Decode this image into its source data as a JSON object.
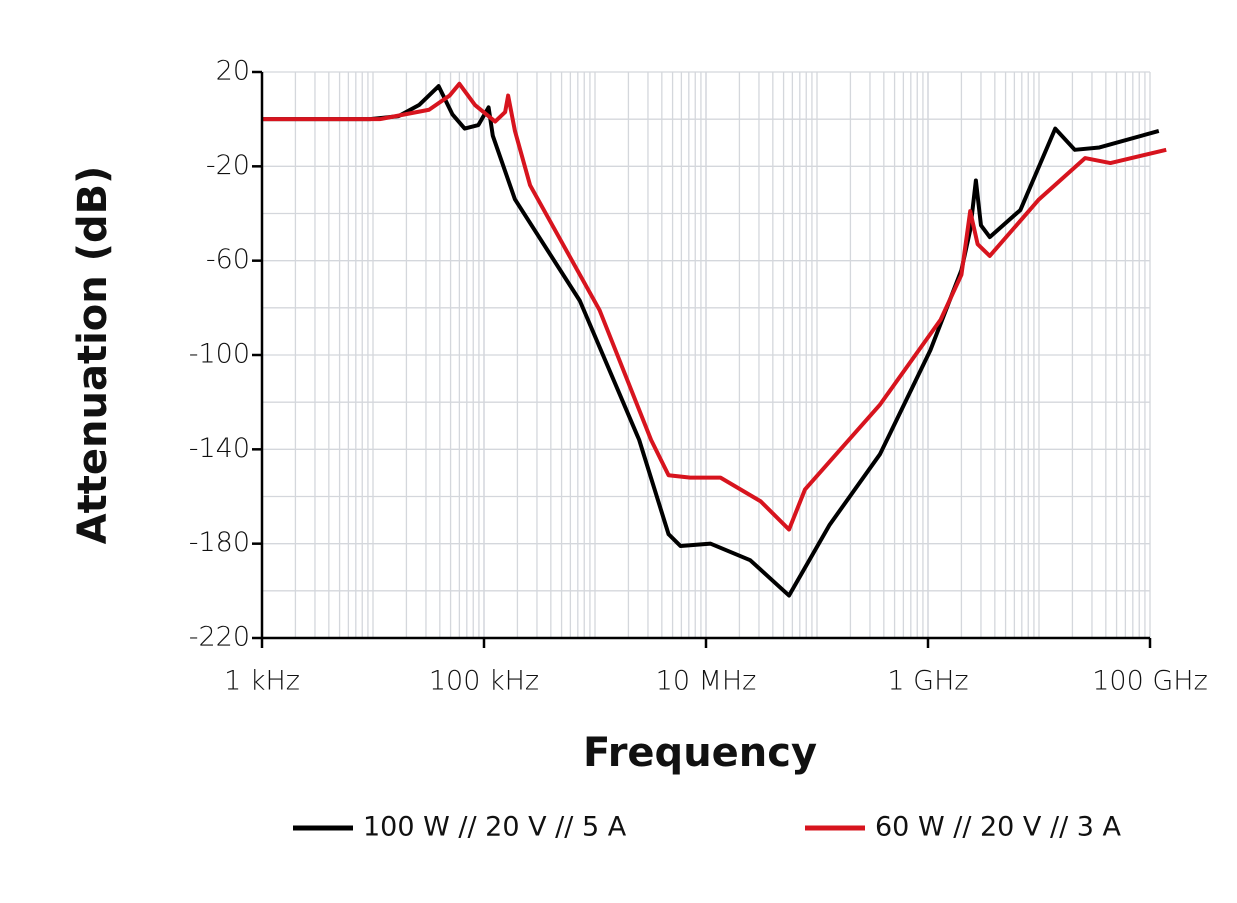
{
  "chart_data": {
    "type": "line",
    "xlabel": "Frequency",
    "ylabel": "Attenuation (dB)",
    "xscale": "log",
    "grid": true,
    "minor_grid": true,
    "legend": "bottom",
    "xlim": [
      1000,
      100000000000
    ],
    "ylim": [
      -220,
      20
    ],
    "xticks": [
      {
        "value": 1000,
        "label": "1 kHz"
      },
      {
        "value": 100000,
        "label": "100 kHz"
      },
      {
        "value": 10000000,
        "label": "10 MHz"
      },
      {
        "value": 1000000000,
        "label": "1 GHz"
      },
      {
        "value": 100000000000,
        "label": "100 GHz"
      }
    ],
    "yticks": [
      -220,
      -180,
      -140,
      -100,
      -60,
      -20,
      20
    ],
    "series": [
      {
        "name": "100 W // 20 V // 5 A",
        "color": "#000000",
        "x": [
          1000,
          9400,
          17000,
          26000,
          39000,
          52000,
          67000,
          89000,
          110000,
          120000,
          190000,
          730000,
          2500000,
          4600000,
          5900000,
          11000000,
          25000000,
          56000000,
          130000000,
          370000000,
          1050000000,
          2000000000,
          2400000000,
          2700000000,
          3000000000,
          3600000000,
          6800000000,
          14000000000,
          21000000000,
          35000000000,
          120000000000
        ],
        "values": [
          0,
          0,
          1.3,
          6,
          14,
          2,
          -4,
          -2.5,
          5,
          -7,
          -34,
          -77,
          -136,
          -176,
          -181,
          -180,
          -187,
          -202,
          -172,
          -142,
          -98,
          -64,
          -47,
          -26,
          -45,
          -50,
          -38.5,
          -4,
          -13,
          -12,
          -5
        ]
      },
      {
        "name": "60 W // 20 V // 3 A",
        "color": "#d7141e",
        "x": [
          1000,
          11500,
          32000,
          49000,
          60000,
          83000,
          126000,
          155000,
          165000,
          190000,
          260000,
          1100000,
          3200000,
          4600000,
          7200000,
          13500000,
          31000000,
          56000000,
          78000000,
          370000000,
          1300000000,
          2000000000,
          2400000000,
          2800000000,
          3600000000,
          10000000000,
          26000000000,
          44000000000,
          140000000000
        ],
        "values": [
          0,
          0,
          4,
          10,
          15,
          6,
          -1,
          3,
          10,
          -5,
          -28,
          -81,
          -136,
          -151,
          -152,
          -152,
          -162,
          -174,
          -157,
          -121,
          -85,
          -66,
          -39,
          -53,
          -58,
          -34,
          -16.5,
          -18.6,
          -13
        ]
      }
    ]
  }
}
